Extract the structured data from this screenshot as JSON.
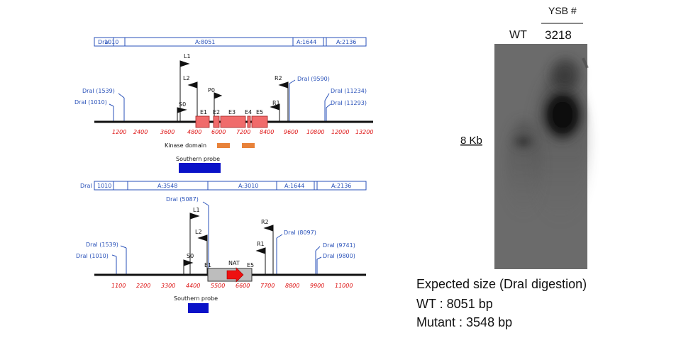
{
  "wt_map": {
    "fragments": [
      "DraI",
      "1010",
      "A:8051",
      "A:1644",
      "A:2136"
    ],
    "scale_ticks": [
      "1200",
      "2400",
      "3600",
      "4800",
      "6000",
      "7200",
      "8400",
      "9600",
      "10800",
      "12000",
      "13200"
    ],
    "site_labels": [
      "DraI (1539)",
      "DraI (1010)",
      "DraI (9590)",
      "DraI (11234)",
      "DraI (11293)"
    ],
    "primers": [
      "L1",
      "L2",
      "P0",
      "S0",
      "R2",
      "R1"
    ],
    "exons": [
      "E1",
      "E2",
      "E3",
      "E4",
      "E5"
    ],
    "kinase_label": "Kinase domain",
    "probe_label": "Southern probe",
    "colors": {
      "exon": "#f06b6b",
      "kinase": "#e8823a",
      "probe": "#0a12c8",
      "site": "#2a52b9",
      "ticklabel": "#dd1111"
    }
  },
  "mut_map": {
    "fragments": [
      "DraI",
      "1010",
      "A:3548",
      "A:3010",
      "A:1644",
      "A:2136"
    ],
    "scale_ticks": [
      "1100",
      "2200",
      "3300",
      "4400",
      "5500",
      "6600",
      "7700",
      "8800",
      "9900",
      "11000"
    ],
    "site_labels": [
      "DraI (5087)",
      "DraI (1539)",
      "DraI (1010)",
      "DraI (8097)",
      "DraI (9741)",
      "DraI (9800)"
    ],
    "primers": [
      "L1",
      "L2",
      "S0",
      "R2",
      "R1"
    ],
    "exons": [
      "E1",
      "E5"
    ],
    "nat_label": "NAT",
    "probe_label": "Southern probe",
    "colors": {
      "cassette": "#bdbdbd",
      "arrow": "#ee1111",
      "probe": "#0a12c8"
    }
  },
  "blot": {
    "lane_wt": "WT",
    "header": "YSB #",
    "lane_mut": "3218",
    "marker": "8 Kb"
  },
  "expected": {
    "title": "Expected size (DraI digestion)",
    "wt": "WT : 8051 bp",
    "mutant": "Mutant : 3548 bp"
  }
}
